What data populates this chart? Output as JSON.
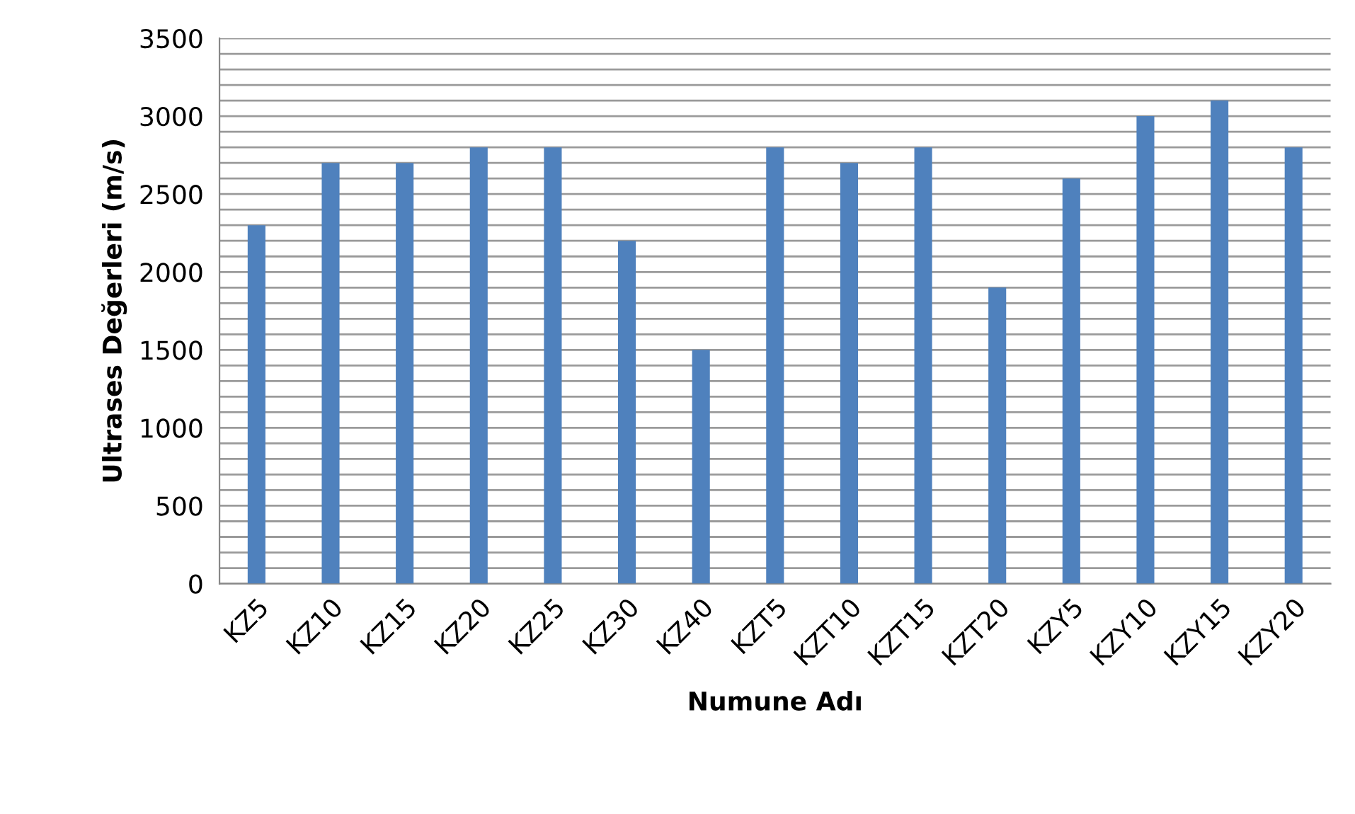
{
  "chart_data": {
    "type": "bar",
    "xlabel": "Numune Adı",
    "ylabel": "Ultrases Değerleri (m/s)",
    "categories": [
      "KZ5",
      "KZ10",
      "KZ15",
      "KZ20",
      "KZ25",
      "KZ30",
      "KZ40",
      "KZT5",
      "KZT10",
      "KZT15",
      "KZT20",
      "KZY5",
      "KZY10",
      "KZY15",
      "KZY20"
    ],
    "values": [
      2300,
      2700,
      2700,
      2800,
      2800,
      2200,
      1500,
      2800,
      2700,
      2800,
      1900,
      2600,
      3000,
      3100,
      2800
    ],
    "color": "#4f81bd",
    "ylim": [
      0,
      3500
    ],
    "yticks": [
      0,
      {
        "value": 100,
        "label": null
      },
      {
        "value": 200,
        "label": null
      },
      {
        "value": 300,
        "label": null
      },
      {
        "value": 400,
        "label": null
      },
      500,
      {
        "value": 600,
        "label": null
      },
      {
        "value": 700,
        "label": null
      },
      {
        "value": 800,
        "label": null
      },
      {
        "value": 900,
        "label": null
      },
      1000,
      {
        "value": 1100,
        "label": null
      },
      {
        "value": 1200,
        "label": null
      },
      {
        "value": 1300,
        "label": null
      },
      {
        "value": 1400,
        "label": null
      },
      1500,
      {
        "value": 1600,
        "label": null
      },
      {
        "value": 1700,
        "label": null
      },
      {
        "value": 1800,
        "label": null
      },
      {
        "value": 1900,
        "label": null
      },
      2000,
      {
        "value": 2100,
        "label": null
      },
      {
        "value": 2200,
        "label": null
      },
      {
        "value": 2300,
        "label": null
      },
      {
        "value": 2400,
        "label": null
      },
      2500,
      {
        "value": 2600,
        "label": null
      },
      {
        "value": 2700,
        "label": null
      },
      {
        "value": 2800,
        "label": null
      },
      {
        "value": 2900,
        "label": null
      },
      3000,
      {
        "value": 3100,
        "label": null
      },
      {
        "value": 3200,
        "label": null
      },
      {
        "value": 3300,
        "label": null
      },
      {
        "value": 3400,
        "label": null
      },
      3500
    ],
    "grid": "y",
    "legend": false
  }
}
